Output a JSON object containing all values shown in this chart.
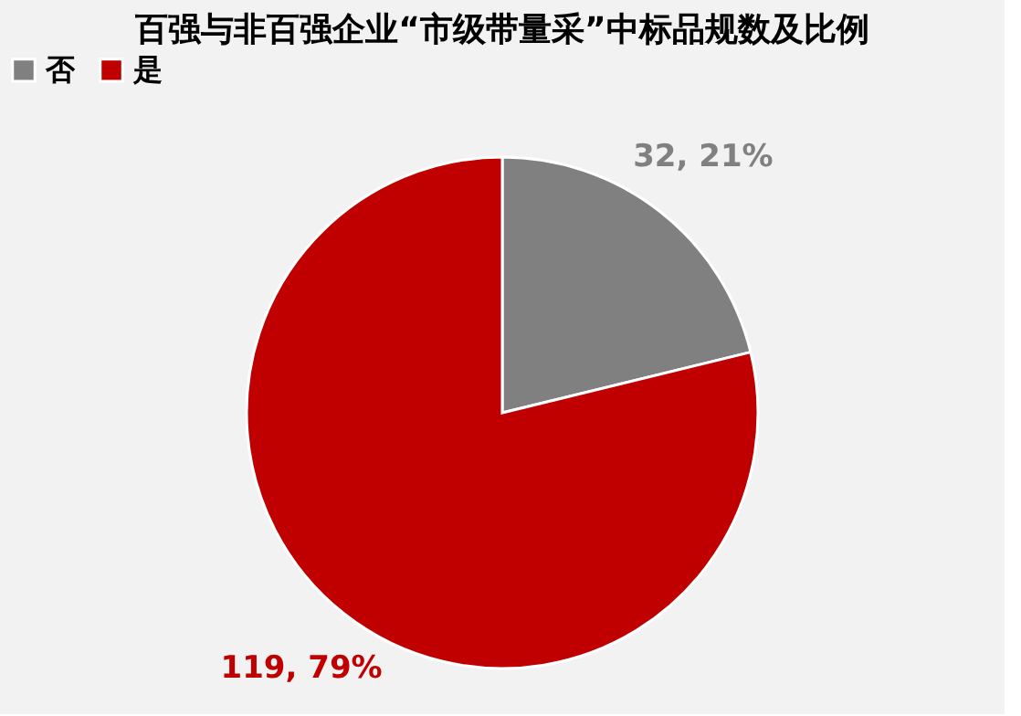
{
  "chart_data": {
    "type": "pie",
    "title": "百强与非百强企业“市级带量采”中标品规数及比例",
    "categories": [
      "否",
      "是"
    ],
    "values": [
      32,
      119
    ],
    "colors": [
      "#808080",
      "#c00000"
    ],
    "value_labels": [
      "32, 21%",
      "119, 79%"
    ],
    "legend": "top"
  }
}
